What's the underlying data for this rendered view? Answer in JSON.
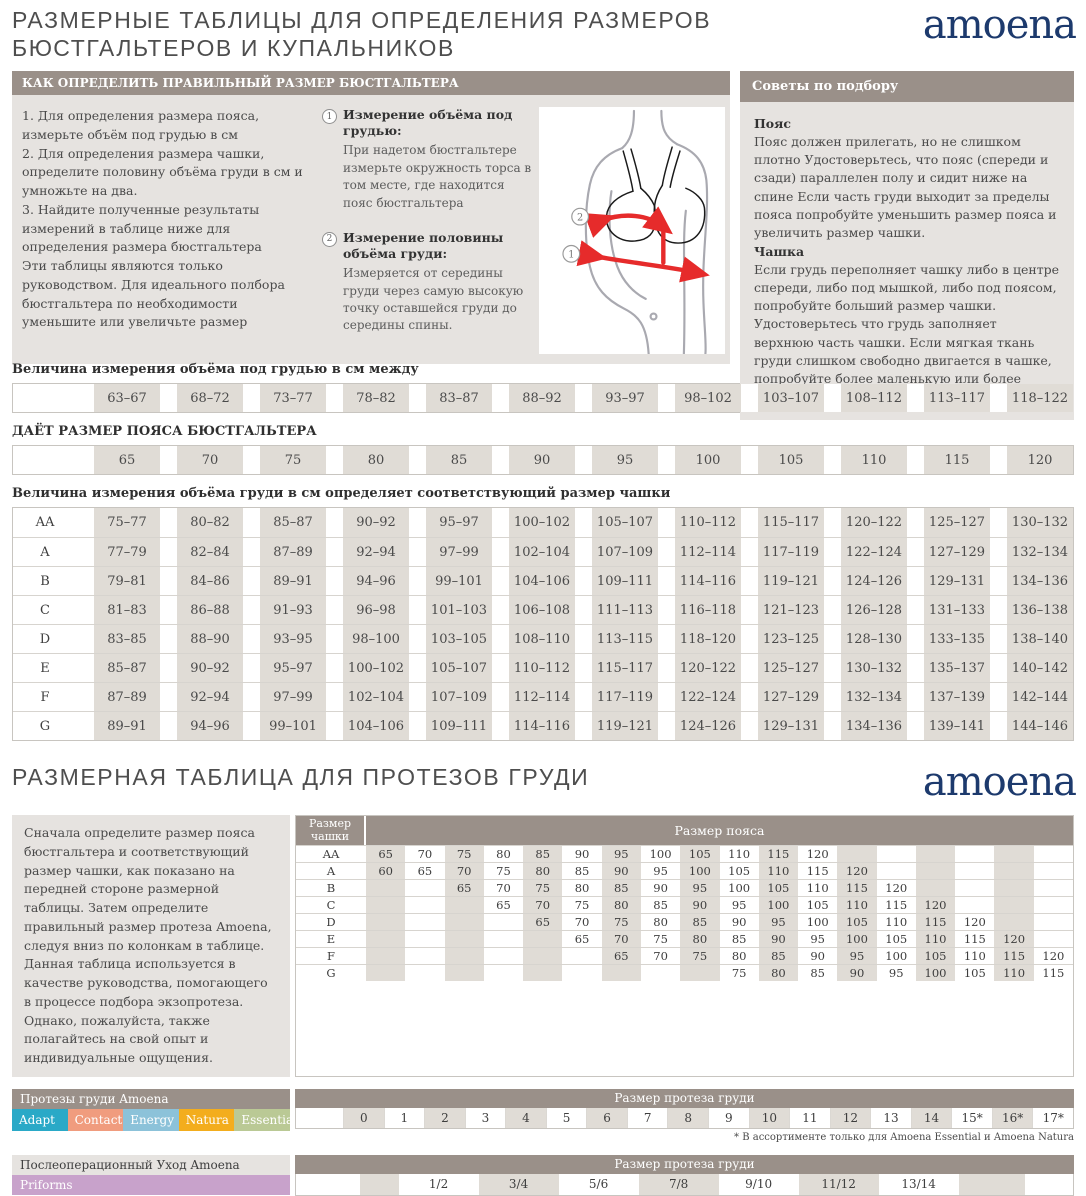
{
  "colors": {
    "brand_navy": "#1d3a6d",
    "taupe_header": "#9a9089",
    "panel_gray": "#e6e3e0",
    "cell_beige": "#e0dcd6",
    "arrow_red": "#e62b2b",
    "priforms_lilac": "#c8a2cb"
  },
  "header": {
    "title_line1": "РАЗМЕРНЫЕ ТАБЛИЦЫ ДЛЯ ОПРЕДЕЛЕНИЯ РАЗМЕРОВ",
    "title_line2": "БЮСТГАЛЬТЕРОВ И КУПАЛЬНИКОВ",
    "brand": "amoena"
  },
  "how_to": {
    "header": "КАК ОПРЕДЕЛИТЬ ПРАВИЛЬНЫЙ РАЗМЕР БЮСТГАЛЬТЕРА",
    "steps": "1. Для определения размера пояса, измерьте объём под грудью в см\n2.  Для определения размера чашки, определите половину объёма груди в см и умножьте на два.\n3.  Найдите полученные результаты измерений в таблице ниже для определения размера бюстгальтера\nЭти таблицы являются только руководством. Для идеального полбора бюстгальтера по необходимости уменьшите или увеличьте размер",
    "items": [
      {
        "num": "1",
        "title": "Измерение объёма под грудью:",
        "text": "При надетом бюстгальтере измерьте окружность торса в том месте, где находится пояс бюстгальтера"
      },
      {
        "num": "2",
        "title": "Измерение половины объёма груди:",
        "text": "Измеряется от середины груди через самую высокую точку оставшейся груди до середины спины."
      }
    ]
  },
  "tips": {
    "header": "Советы по подбору",
    "belt_title": "Пояс",
    "belt_text": "Пояс должен прилегать, но не слишком плотно Удостоверьтесь, что пояс (спереди и сзади) параллелен полу и сидит ниже на спине Если часть груди выходит за пределы пояса попробуйте уменьшить размер пояса и увеличить размер чашки.",
    "cup_title": "Чашка",
    "cup_text": "Если грудь переполняет чашку либо в центре спереди, либо под мышкой, либо под поясом, попробуйте больший размер чашки. Удостоверьтесь что грудь заполняет верхнюю часть чашки. Если мягкая ткань груди слишком свободно двигается в чашке, попробуйте более маленькую или более плоскую модель бюстгальтера"
  },
  "size_tables": {
    "underbust_label": "Величина измерения объёма под грудью в см между",
    "underbust_ranges": [
      "63–67",
      "68–72",
      "73–77",
      "78–82",
      "83–87",
      "88–92",
      "93–97",
      "98–102",
      "103–107",
      "108–112",
      "113–117",
      "118–122"
    ],
    "band_label": "ДАЁТ РАЗМЕР ПОЯСА БЮСТГАЛЬТЕРА",
    "band_sizes": [
      "65",
      "70",
      "75",
      "80",
      "85",
      "90",
      "95",
      "100",
      "105",
      "110",
      "115",
      "120"
    ],
    "cup_label": "Величина измерения объёма груди в см определяет соответствующий размер чашки",
    "cup_rows": [
      {
        "cup": "AA",
        "values": [
          "75–77",
          "80–82",
          "85–87",
          "90–92",
          "95–97",
          "100–102",
          "105–107",
          "110–112",
          "115–117",
          "120–122",
          "125–127",
          "130–132"
        ]
      },
      {
        "cup": "A",
        "values": [
          "77–79",
          "82–84",
          "87–89",
          "92–94",
          "97–99",
          "102–104",
          "107–109",
          "112–114",
          "117–119",
          "122–124",
          "127–129",
          "132–134"
        ]
      },
      {
        "cup": "B",
        "values": [
          "79–81",
          "84–86",
          "89–91",
          "94–96",
          "99–101",
          "104–106",
          "109–111",
          "114–116",
          "119–121",
          "124–126",
          "129–131",
          "134–136"
        ]
      },
      {
        "cup": "C",
        "values": [
          "81–83",
          "86–88",
          "91–93",
          "96–98",
          "101–103",
          "106–108",
          "111–113",
          "116–118",
          "121–123",
          "126–128",
          "131–133",
          "136–138"
        ]
      },
      {
        "cup": "D",
        "values": [
          "83–85",
          "88–90",
          "93–95",
          "98–100",
          "103–105",
          "108–110",
          "113–115",
          "118–120",
          "123–125",
          "128–130",
          "133–135",
          "138–140"
        ]
      },
      {
        "cup": "E",
        "values": [
          "85–87",
          "90–92",
          "95–97",
          "100–102",
          "105–107",
          "110–112",
          "115–117",
          "120–122",
          "125–127",
          "130–132",
          "135–137",
          "140–142"
        ]
      },
      {
        "cup": "F",
        "values": [
          "87–89",
          "92–94",
          "97–99",
          "102–104",
          "107–109",
          "112–114",
          "117–119",
          "122–124",
          "127–129",
          "132–134",
          "137–139",
          "142–144"
        ]
      },
      {
        "cup": "G",
        "values": [
          "89–91",
          "94–96",
          "99–101",
          "104–106",
          "109–111",
          "114–116",
          "119–121",
          "124–126",
          "129–131",
          "134–136",
          "139–141",
          "144–146"
        ]
      }
    ]
  },
  "prosthesis": {
    "section_title": "РАЗМЕРНАЯ ТАБЛИЦА ДЛЯ ПРОТЕЗОВ ГРУДИ",
    "intro": "Сначала определите размер пояса бюстгальтера и соответствующий размер чашки, как показано на передней стороне размерной таблицы. Затем определите правильный размер протеза Amoena, следуя вниз по колонкам в таблице. Данная таблица используется в качестве руководства, помогающего в процессе подбора экзопротеза. Однако, пожалуйста, также полагайтесь на свой опыт и индивидуальные ощущения.",
    "cup_col_header": "Размер чашки",
    "band_header": "Размер пояса",
    "rows": [
      {
        "cup": "AA",
        "bands": [
          "65",
          "70",
          "75",
          "80",
          "85",
          "90",
          "95",
          "100",
          "105",
          "110",
          "115",
          "120",
          "",
          "",
          "",
          "",
          "",
          ""
        ]
      },
      {
        "cup": "A",
        "bands": [
          "60",
          "65",
          "70",
          "75",
          "80",
          "85",
          "90",
          "95",
          "100",
          "105",
          "110",
          "115",
          "120",
          "",
          "",
          "",
          "",
          ""
        ]
      },
      {
        "cup": "B",
        "bands": [
          "",
          "",
          "65",
          "70",
          "75",
          "80",
          "85",
          "90",
          "95",
          "100",
          "105",
          "110",
          "115",
          "120",
          "",
          "",
          "",
          ""
        ]
      },
      {
        "cup": "C",
        "bands": [
          "",
          "",
          "",
          "65",
          "70",
          "75",
          "80",
          "85",
          "90",
          "95",
          "100",
          "105",
          "110",
          "115",
          "120",
          "",
          "",
          ""
        ]
      },
      {
        "cup": "D",
        "bands": [
          "",
          "",
          "",
          "",
          "65",
          "70",
          "75",
          "80",
          "85",
          "90",
          "95",
          "100",
          "105",
          "110",
          "115",
          "120",
          "",
          ""
        ]
      },
      {
        "cup": "E",
        "bands": [
          "",
          "",
          "",
          "",
          "",
          "65",
          "70",
          "75",
          "80",
          "85",
          "90",
          "95",
          "100",
          "105",
          "110",
          "115",
          "120",
          ""
        ]
      },
      {
        "cup": "F",
        "bands": [
          "",
          "",
          "",
          "",
          "",
          "",
          "65",
          "70",
          "75",
          "80",
          "85",
          "90",
          "95",
          "100",
          "105",
          "110",
          "115",
          "120"
        ]
      },
      {
        "cup": "G",
        "bands": [
          "",
          "",
          "",
          "",
          "",
          "",
          "",
          "",
          "",
          "75",
          "80",
          "85",
          "90",
          "95",
          "100",
          "105",
          "110",
          "115"
        ]
      }
    ]
  },
  "amoena_forms": {
    "header": "Протезы груди Amoena",
    "ranges": [
      {
        "label": "Adapt",
        "color": "#2aa9c7"
      },
      {
        "label": "Contact",
        "color": "#f09c7e"
      },
      {
        "label": "Energy",
        "color": "#8cc2d9"
      },
      {
        "label": "Natura",
        "color": "#f3ad1d"
      },
      {
        "label": "Essential",
        "color": "#bac995"
      }
    ],
    "size_header": "Размер протеза груди",
    "sizes": [
      "0",
      "1",
      "2",
      "3",
      "4",
      "5",
      "6",
      "7",
      "8",
      "9",
      "10",
      "11",
      "12",
      "13",
      "14",
      "15*",
      "16*",
      "17*"
    ],
    "footnote": "* В ассортименте только для  Amoena Essential и Amoena Natura"
  },
  "postop": {
    "header": "Послеоперационный Уход Amoena",
    "product": "Priforms",
    "size_header": "Размер протеза груди",
    "sizes": [
      "1/2",
      "3/4",
      "5/6",
      "7/8",
      "9/10",
      "11/12",
      "13/14"
    ]
  }
}
